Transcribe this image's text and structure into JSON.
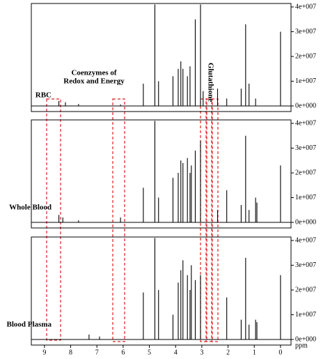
{
  "chart_data": [
    {
      "type": "spectrum",
      "label": "RBC",
      "color": "#000000",
      "annotations": [
        "Coenzymes of",
        "Redox and Energy",
        "Glutathione"
      ],
      "xlim": [
        9.5,
        -0.4
      ],
      "ylim": [
        -2250000,
        41400000
      ],
      "yticks": [
        {
          "value": 0,
          "label": "0e+000"
        },
        {
          "value": 10000000,
          "label": "1e+007"
        },
        {
          "value": 20000000,
          "label": "2e+007"
        },
        {
          "value": 30000000,
          "label": "3e+007"
        },
        {
          "value": 40000000,
          "label": "4e+007"
        }
      ],
      "x": [
        8.45,
        8.2,
        7.7,
        6.1,
        5.23,
        4.79,
        4.65,
        4.1,
        3.9,
        3.8,
        3.72,
        3.55,
        3.45,
        3.25,
        3.05,
        2.95,
        2.4,
        2.05,
        1.5,
        1.33,
        1.2,
        0.95,
        0.0
      ],
      "values": [
        2000000,
        1500000,
        800000,
        600000,
        9000000,
        41000000,
        10000000,
        12000000,
        15000000,
        18000000,
        15000000,
        12000000,
        16000000,
        35000000,
        41000000,
        6000000,
        7000000,
        3000000,
        7000000,
        33000000,
        9000000,
        3000000,
        30000000
      ]
    },
    {
      "type": "spectrum",
      "label": "Whole Blood",
      "color": "#000000",
      "xlim": [
        9.5,
        -0.4
      ],
      "ylim": [
        -2250000,
        41400000
      ],
      "yticks": [
        {
          "value": 0,
          "label": "0e+000"
        },
        {
          "value": 10000000,
          "label": "1e+007"
        },
        {
          "value": 20000000,
          "label": "2e+007"
        },
        {
          "value": 30000000,
          "label": "3e+007"
        },
        {
          "value": 40000000,
          "label": "4e+007"
        }
      ],
      "x": [
        8.45,
        8.3,
        7.7,
        6.1,
        5.23,
        4.79,
        4.65,
        4.1,
        3.9,
        3.8,
        3.72,
        3.55,
        3.45,
        3.4,
        3.25,
        3.05,
        2.4,
        2.05,
        1.5,
        1.33,
        1.2,
        0.95,
        0.9,
        0.0
      ],
      "values": [
        3000000,
        2000000,
        800000,
        2000000,
        14000000,
        41000000,
        10000000,
        18000000,
        20000000,
        25000000,
        24000000,
        26000000,
        20000000,
        23000000,
        29000000,
        33000000,
        5000000,
        13000000,
        7000000,
        35000000,
        5000000,
        10000000,
        8000000,
        23000000
      ]
    },
    {
      "type": "spectrum",
      "label": "Blood Plasma",
      "color": "#000000",
      "xlabel": "ppm",
      "xlim": [
        9.5,
        -0.4
      ],
      "ylim": [
        -2250000,
        41400000
      ],
      "xticks": [
        9,
        8,
        7,
        6,
        5,
        4,
        3,
        2,
        1,
        0
      ],
      "yticks": [
        {
          "value": 0,
          "label": "0e+000"
        },
        {
          "value": 10000000,
          "label": "1e+007"
        },
        {
          "value": 20000000,
          "label": "2e+007"
        },
        {
          "value": 30000000,
          "label": "3e+007"
        },
        {
          "value": 40000000,
          "label": "4e+007"
        }
      ],
      "x": [
        7.3,
        6.9,
        5.23,
        4.79,
        4.65,
        4.1,
        3.9,
        3.8,
        3.72,
        3.55,
        3.45,
        3.4,
        3.25,
        3.05,
        2.05,
        1.5,
        1.33,
        1.2,
        0.95,
        0.9,
        0.0
      ],
      "values": [
        2000000,
        1200000,
        19000000,
        41000000,
        20000000,
        10000000,
        23000000,
        28000000,
        32000000,
        26000000,
        20000000,
        30000000,
        24000000,
        26000000,
        17000000,
        8000000,
        33000000,
        6000000,
        8000000,
        7000000,
        26000000
      ]
    }
  ]
}
